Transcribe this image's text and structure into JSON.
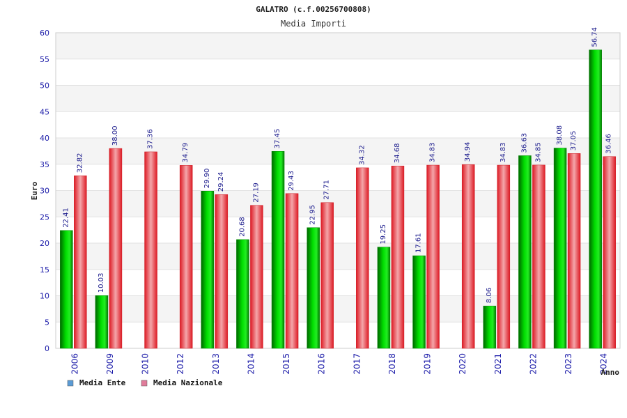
{
  "chart_data": {
    "type": "bar",
    "title": "GALATRO (c.f.00256700808)",
    "subtitle": "Media Importi",
    "xlabel": "Anno",
    "ylabel": "Euro",
    "ylim": [
      0,
      60
    ],
    "yticks": [
      0,
      5,
      10,
      15,
      20,
      25,
      30,
      35,
      40,
      45,
      50,
      55,
      60
    ],
    "categories": [
      "2006",
      "2009",
      "2010",
      "2012",
      "2013",
      "2014",
      "2015",
      "2016",
      "2017",
      "2018",
      "2019",
      "2020",
      "2021",
      "2022",
      "2023",
      "2024"
    ],
    "series": [
      {
        "name": "Media Ente",
        "color": "#00b400",
        "values": [
          22.41,
          10.03,
          null,
          null,
          29.9,
          20.68,
          37.45,
          22.95,
          null,
          19.25,
          17.61,
          null,
          8.06,
          36.63,
          38.08,
          56.74
        ],
        "labels": [
          "22.41",
          "10.03",
          "",
          "",
          "29.90",
          "20.68",
          "37.45",
          "22.95",
          "",
          "19.25",
          "17.61",
          "",
          "8.06",
          "36.63",
          "38.08",
          "56.74"
        ]
      },
      {
        "name": "Media Nazionale",
        "color": "#e8202a",
        "values": [
          32.82,
          38.0,
          37.36,
          34.79,
          29.24,
          27.19,
          29.43,
          27.71,
          34.32,
          34.68,
          34.83,
          34.94,
          34.83,
          34.85,
          37.05,
          36.46
        ],
        "labels": [
          "32.82",
          "38.00",
          "37.36",
          "34.79",
          "29.24",
          "27.19",
          "29.43",
          "27.71",
          "34.32",
          "34.68",
          "34.83",
          "34.94",
          "34.83",
          "34.85",
          "37.05",
          "36.46"
        ]
      }
    ],
    "legend": [
      {
        "label": "Media Ente",
        "color": "#5b9bd5"
      },
      {
        "label": "Media Nazionale",
        "color": "#e07b9a"
      }
    ],
    "grid": true,
    "legend_position": "bottom-left"
  }
}
